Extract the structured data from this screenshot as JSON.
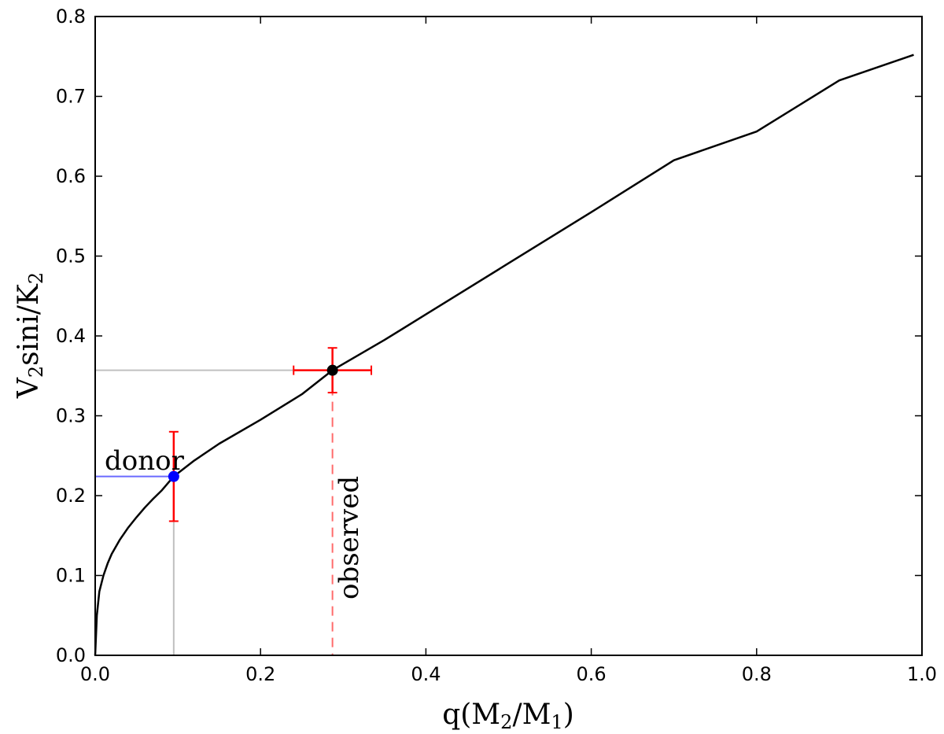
{
  "chart_data": {
    "type": "line",
    "xlim": [
      0.0,
      1.0
    ],
    "ylim": [
      0.0,
      0.8
    ],
    "xticks": [
      "0.0",
      "0.2",
      "0.4",
      "0.6",
      "0.8",
      "1.0"
    ],
    "yticks": [
      "0.0",
      "0.1",
      "0.2",
      "0.3",
      "0.4",
      "0.5",
      "0.6",
      "0.7",
      "0.8"
    ],
    "xlabel": {
      "base": "q(M",
      "sub1": "2",
      "mid": "/M",
      "sub2": "1",
      "end": ")"
    },
    "ylabel": {
      "base": "V",
      "sub1": "2",
      "mid": "sini/K",
      "sub2": "2"
    },
    "grid": false,
    "curve": {
      "x": [
        0.0,
        0.002,
        0.005,
        0.01,
        0.015,
        0.02,
        0.03,
        0.04,
        0.05,
        0.06,
        0.07,
        0.08,
        0.095,
        0.12,
        0.15,
        0.2,
        0.25,
        0.287,
        0.35,
        0.4,
        0.5,
        0.6,
        0.7,
        0.8,
        0.9,
        0.99
      ],
      "y": [
        0.0,
        0.05,
        0.08,
        0.1,
        0.115,
        0.127,
        0.145,
        0.16,
        0.173,
        0.185,
        0.196,
        0.206,
        0.224,
        0.244,
        0.265,
        0.295,
        0.327,
        0.357,
        0.395,
        0.427,
        0.491,
        0.555,
        0.62,
        0.656,
        0.72,
        0.752
      ]
    },
    "points": [
      {
        "name": "observed",
        "x": 0.287,
        "y": 0.357,
        "xerr": 0.047,
        "yerr": 0.028,
        "color": "#000000",
        "label": "observed"
      },
      {
        "name": "donor",
        "x": 0.095,
        "y": 0.224,
        "yerr_low": 0.056,
        "yerr_high": 0.056,
        "color": "#0000ff",
        "label": "donor"
      }
    ],
    "errorbar_color": "#ff0000",
    "guide_color_gray": "#c0c0c0",
    "guide_color_blue": "#6a6aff",
    "observed_dash_color": "#ff6b6b"
  }
}
